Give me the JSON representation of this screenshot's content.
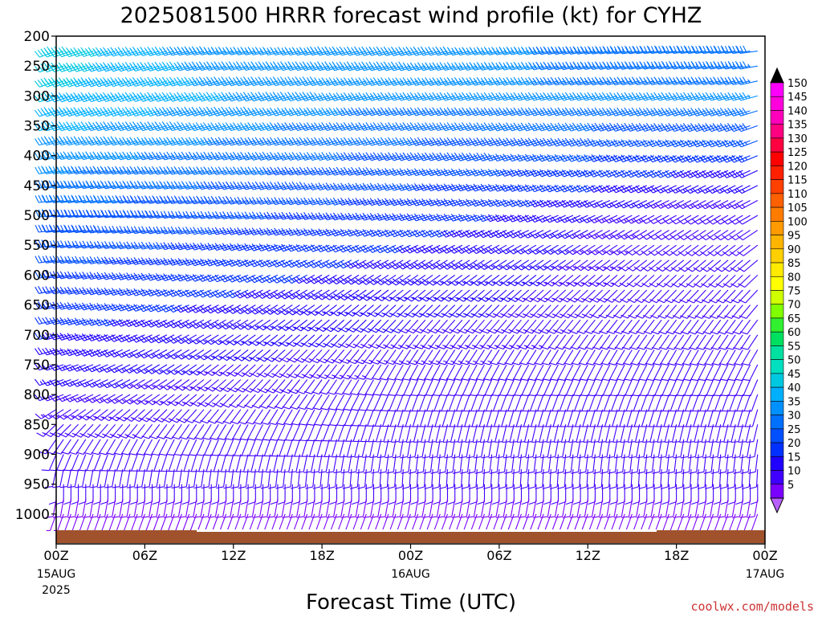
{
  "chart_data": {
    "type": "wind_barb_profile",
    "title": "2025081500 HRRR forecast wind profile (kt) for CYHZ",
    "xlabel": "Forecast Time (UTC)",
    "credit": "coolwx.com/models",
    "y_levels_hpa": [
      200,
      250,
      300,
      350,
      400,
      450,
      500,
      550,
      600,
      650,
      700,
      750,
      800,
      850,
      900,
      950,
      1000
    ],
    "y_range_hpa": [
      200,
      1050
    ],
    "x_range_hours": [
      0,
      48
    ],
    "x_ticks": [
      {
        "hour": 0,
        "label": "00Z",
        "date": "15AUG",
        "year": "2025"
      },
      {
        "hour": 6,
        "label": "06Z",
        "date": "",
        "year": ""
      },
      {
        "hour": 12,
        "label": "12Z",
        "date": "",
        "year": ""
      },
      {
        "hour": 18,
        "label": "18Z",
        "date": "",
        "year": ""
      },
      {
        "hour": 24,
        "label": "00Z",
        "date": "16AUG",
        "year": ""
      },
      {
        "hour": 30,
        "label": "06Z",
        "date": "",
        "year": ""
      },
      {
        "hour": 36,
        "label": "12Z",
        "date": "",
        "year": ""
      },
      {
        "hour": 42,
        "label": "18Z",
        "date": "",
        "year": ""
      },
      {
        "hour": 48,
        "label": "00Z",
        "date": "17AUG",
        "year": ""
      }
    ],
    "colorbar": {
      "labels": [
        "150",
        "145",
        "140",
        "135",
        "130",
        "125",
        "120",
        "115",
        "110",
        "105",
        "100",
        "95",
        "90",
        "85",
        "80",
        "75",
        "70",
        "65",
        "60",
        "55",
        "50",
        "45",
        "40",
        "35",
        "30",
        "25",
        "20",
        "15",
        "10",
        "5"
      ],
      "colors": [
        "#ff00ff",
        "#ff00dd",
        "#ff00bb",
        "#ff0080",
        "#ff0040",
        "#ff0000",
        "#ff2000",
        "#ff4000",
        "#ff6000",
        "#ff7c00",
        "#ff9a00",
        "#ffb400",
        "#ffd000",
        "#ffea00",
        "#ffff00",
        "#d0ff00",
        "#80ff00",
        "#30f030",
        "#00e060",
        "#00e0a0",
        "#00e0c0",
        "#00c8e0",
        "#00b0ff",
        "#0090ff",
        "#0070ff",
        "#0050ff",
        "#0030ff",
        "#2000ff",
        "#4000ff",
        "#7a00ff"
      ],
      "top_arrow_color": "#000000",
      "bottom_arrow_color": "#b860ff"
    },
    "ground_color": "#a0522d",
    "wind_samples": [
      {
        "p": 200,
        "h0": 0,
        "dir": 250,
        "spd": 50
      },
      {
        "p": 200,
        "h0": 12,
        "dir": 260,
        "spd": 35
      },
      {
        "p": 200,
        "h0": 24,
        "dir": 255,
        "spd": 40
      },
      {
        "p": 200,
        "h0": 42,
        "dir": 265,
        "spd": 30
      },
      {
        "p": 300,
        "h0": 0,
        "dir": 250,
        "spd": 45
      },
      {
        "p": 300,
        "h0": 24,
        "dir": 255,
        "spd": 35
      },
      {
        "p": 500,
        "h0": 0,
        "dir": 265,
        "spd": 30
      },
      {
        "p": 500,
        "h0": 30,
        "dir": 250,
        "spd": 20
      },
      {
        "p": 500,
        "h0": 44,
        "dir": 240,
        "spd": 10
      },
      {
        "p": 800,
        "h0": 0,
        "dir": 250,
        "spd": 15
      },
      {
        "p": 800,
        "h0": 24,
        "dir": 200,
        "spd": 10
      },
      {
        "p": 950,
        "h0": 24,
        "dir": 180,
        "spd": 10
      },
      {
        "p": 1000,
        "h0": 44,
        "dir": 200,
        "spd": 5
      }
    ]
  }
}
